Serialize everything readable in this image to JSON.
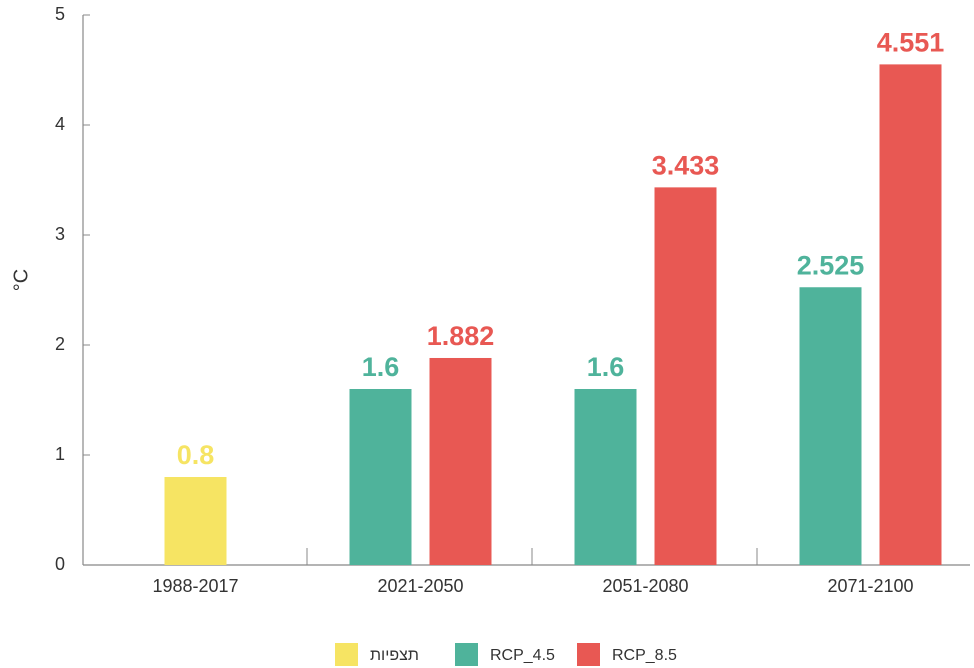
{
  "chart_data": {
    "type": "bar",
    "y_label": "°C",
    "categories": [
      "1988-2017",
      "2021-2050",
      "2051-2080",
      "2071-2100"
    ],
    "series": [
      {
        "name": "תצפיות",
        "color": "#f6e463",
        "values": [
          0.8,
          null,
          null,
          null
        ]
      },
      {
        "name": "RCP_4.5",
        "color": "#4fb39b",
        "values": [
          null,
          1.6,
          1.6,
          2.525
        ]
      },
      {
        "name": "RCP_8.5",
        "color": "#e85853",
        "values": [
          null,
          1.882,
          3.433,
          4.551
        ]
      }
    ],
    "ylim": [
      0,
      5
    ],
    "yticks": [
      0,
      1,
      2,
      3,
      4,
      5
    ]
  }
}
